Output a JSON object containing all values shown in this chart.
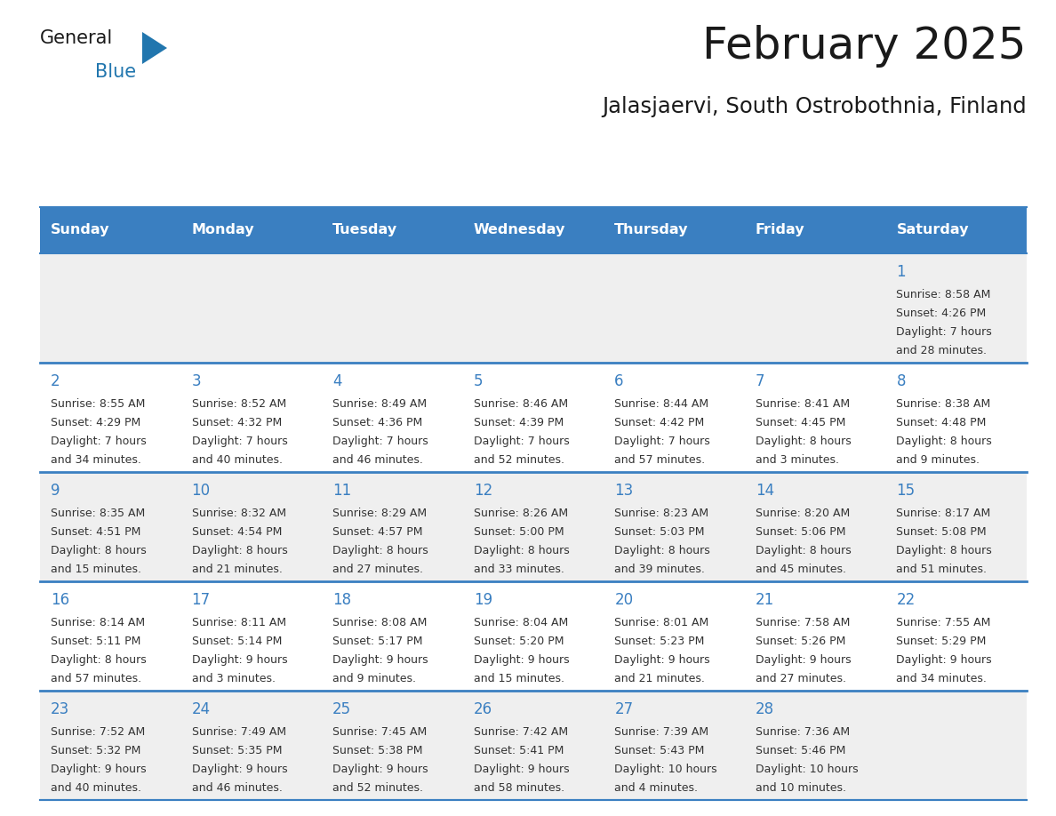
{
  "title": "February 2025",
  "subtitle": "Jalasjaervi, South Ostrobothnia, Finland",
  "days_of_week": [
    "Sunday",
    "Monday",
    "Tuesday",
    "Wednesday",
    "Thursday",
    "Friday",
    "Saturday"
  ],
  "header_bg": "#3A7FC1",
  "header_text_color": "#FFFFFF",
  "row_bg_odd": "#EFEFEF",
  "row_bg_even": "#FFFFFF",
  "border_color": "#3A7FC1",
  "day_num_color": "#3A7FC1",
  "cell_text_color": "#333333",
  "logo_general_color": "#1a1a1a",
  "logo_blue_color": "#2176AE",
  "calendar_data": [
    [
      {
        "day": null,
        "sunrise": null,
        "sunset": null,
        "daylight": null
      },
      {
        "day": null,
        "sunrise": null,
        "sunset": null,
        "daylight": null
      },
      {
        "day": null,
        "sunrise": null,
        "sunset": null,
        "daylight": null
      },
      {
        "day": null,
        "sunrise": null,
        "sunset": null,
        "daylight": null
      },
      {
        "day": null,
        "sunrise": null,
        "sunset": null,
        "daylight": null
      },
      {
        "day": null,
        "sunrise": null,
        "sunset": null,
        "daylight": null
      },
      {
        "day": 1,
        "sunrise": "8:58 AM",
        "sunset": "4:26 PM",
        "daylight": "7 hours\nand 28 minutes."
      }
    ],
    [
      {
        "day": 2,
        "sunrise": "8:55 AM",
        "sunset": "4:29 PM",
        "daylight": "7 hours\nand 34 minutes."
      },
      {
        "day": 3,
        "sunrise": "8:52 AM",
        "sunset": "4:32 PM",
        "daylight": "7 hours\nand 40 minutes."
      },
      {
        "day": 4,
        "sunrise": "8:49 AM",
        "sunset": "4:36 PM",
        "daylight": "7 hours\nand 46 minutes."
      },
      {
        "day": 5,
        "sunrise": "8:46 AM",
        "sunset": "4:39 PM",
        "daylight": "7 hours\nand 52 minutes."
      },
      {
        "day": 6,
        "sunrise": "8:44 AM",
        "sunset": "4:42 PM",
        "daylight": "7 hours\nand 57 minutes."
      },
      {
        "day": 7,
        "sunrise": "8:41 AM",
        "sunset": "4:45 PM",
        "daylight": "8 hours\nand 3 minutes."
      },
      {
        "day": 8,
        "sunrise": "8:38 AM",
        "sunset": "4:48 PM",
        "daylight": "8 hours\nand 9 minutes."
      }
    ],
    [
      {
        "day": 9,
        "sunrise": "8:35 AM",
        "sunset": "4:51 PM",
        "daylight": "8 hours\nand 15 minutes."
      },
      {
        "day": 10,
        "sunrise": "8:32 AM",
        "sunset": "4:54 PM",
        "daylight": "8 hours\nand 21 minutes."
      },
      {
        "day": 11,
        "sunrise": "8:29 AM",
        "sunset": "4:57 PM",
        "daylight": "8 hours\nand 27 minutes."
      },
      {
        "day": 12,
        "sunrise": "8:26 AM",
        "sunset": "5:00 PM",
        "daylight": "8 hours\nand 33 minutes."
      },
      {
        "day": 13,
        "sunrise": "8:23 AM",
        "sunset": "5:03 PM",
        "daylight": "8 hours\nand 39 minutes."
      },
      {
        "day": 14,
        "sunrise": "8:20 AM",
        "sunset": "5:06 PM",
        "daylight": "8 hours\nand 45 minutes."
      },
      {
        "day": 15,
        "sunrise": "8:17 AM",
        "sunset": "5:08 PM",
        "daylight": "8 hours\nand 51 minutes."
      }
    ],
    [
      {
        "day": 16,
        "sunrise": "8:14 AM",
        "sunset": "5:11 PM",
        "daylight": "8 hours\nand 57 minutes."
      },
      {
        "day": 17,
        "sunrise": "8:11 AM",
        "sunset": "5:14 PM",
        "daylight": "9 hours\nand 3 minutes."
      },
      {
        "day": 18,
        "sunrise": "8:08 AM",
        "sunset": "5:17 PM",
        "daylight": "9 hours\nand 9 minutes."
      },
      {
        "day": 19,
        "sunrise": "8:04 AM",
        "sunset": "5:20 PM",
        "daylight": "9 hours\nand 15 minutes."
      },
      {
        "day": 20,
        "sunrise": "8:01 AM",
        "sunset": "5:23 PM",
        "daylight": "9 hours\nand 21 minutes."
      },
      {
        "day": 21,
        "sunrise": "7:58 AM",
        "sunset": "5:26 PM",
        "daylight": "9 hours\nand 27 minutes."
      },
      {
        "day": 22,
        "sunrise": "7:55 AM",
        "sunset": "5:29 PM",
        "daylight": "9 hours\nand 34 minutes."
      }
    ],
    [
      {
        "day": 23,
        "sunrise": "7:52 AM",
        "sunset": "5:32 PM",
        "daylight": "9 hours\nand 40 minutes."
      },
      {
        "day": 24,
        "sunrise": "7:49 AM",
        "sunset": "5:35 PM",
        "daylight": "9 hours\nand 46 minutes."
      },
      {
        "day": 25,
        "sunrise": "7:45 AM",
        "sunset": "5:38 PM",
        "daylight": "9 hours\nand 52 minutes."
      },
      {
        "day": 26,
        "sunrise": "7:42 AM",
        "sunset": "5:41 PM",
        "daylight": "9 hours\nand 58 minutes."
      },
      {
        "day": 27,
        "sunrise": "7:39 AM",
        "sunset": "5:43 PM",
        "daylight": "10 hours\nand 4 minutes."
      },
      {
        "day": 28,
        "sunrise": "7:36 AM",
        "sunset": "5:46 PM",
        "daylight": "10 hours\nand 10 minutes."
      },
      {
        "day": null,
        "sunrise": null,
        "sunset": null,
        "daylight": null
      }
    ]
  ]
}
